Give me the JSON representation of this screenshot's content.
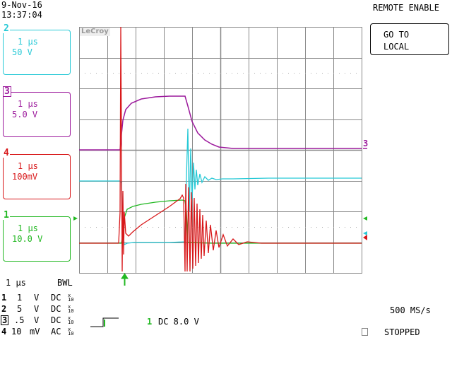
{
  "header": {
    "date": "9-Nov-16",
    "time": "13:37:04",
    "remote": "REMOTE ENABLE"
  },
  "button": {
    "line1": "GO TO",
    "line2": "LOCAL"
  },
  "brand": "LeCroy",
  "channels": [
    {
      "num": "2",
      "timebase": "1 µs",
      "scale": "50 V",
      "color": "#27c9d6"
    },
    {
      "num": "3",
      "timebase": "1 µs",
      "scale": "5.0 V",
      "color": "#9c1a9c"
    },
    {
      "num": "4",
      "timebase": "1 µs",
      "scale": "100mV",
      "color": "#d8181a"
    },
    {
      "num": "1",
      "timebase": "1 µs",
      "scale": "10.0 V",
      "color": "#22b822"
    }
  ],
  "bottom": {
    "timebase": "1 µs",
    "bwl": "BWL",
    "rows": [
      {
        "ch": "1",
        "val": "1",
        "unit": "V",
        "coupling": "DC",
        "frac_top": "x",
        "frac_bot": "10"
      },
      {
        "ch": "2",
        "val": "5",
        "unit": "V",
        "coupling": "DC",
        "frac_top": "x",
        "frac_bot": "10"
      },
      {
        "ch": "3",
        "val": ".5",
        "unit": "V",
        "coupling": "DC",
        "frac_top": "x",
        "frac_bot": "10"
      },
      {
        "ch": "4",
        "val": "10",
        "unit": "mV",
        "coupling": "AC",
        "frac_top": "x",
        "frac_bot": "10"
      }
    ],
    "trigger_ch": "1",
    "trigger": "DC 8.0 V",
    "sample_rate": "500 MS/s",
    "status": "STOPPED"
  },
  "markers": {
    "ch3_right": "3"
  },
  "colors": {
    "grid": "#888888",
    "ch1": "#22b822",
    "ch2": "#27c9d6",
    "ch3": "#9c1a9c",
    "ch4": "#d8181a"
  }
}
